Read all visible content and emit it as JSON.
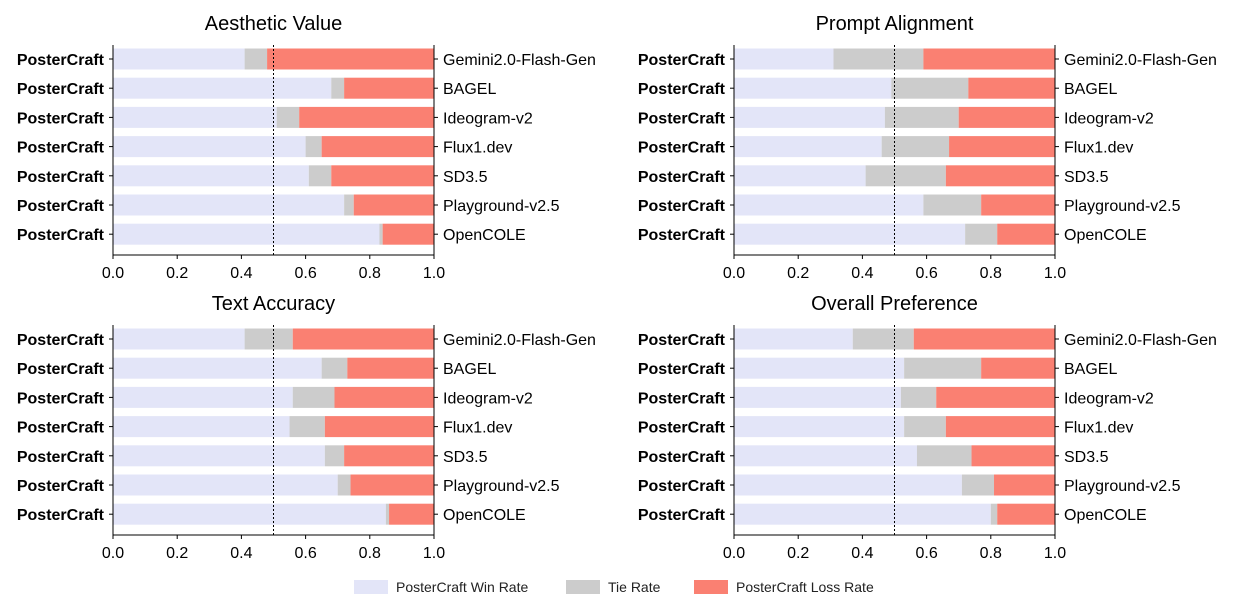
{
  "chart_data": {
    "type": "bar",
    "orientation": "horizontal-stacked",
    "legend": {
      "placement": "bottom-center",
      "entries": [
        {
          "name": "PosterCraft Win Rate",
          "color": "#e3e5f8"
        },
        {
          "name": "Tie Rate",
          "color": "#cccccc"
        },
        {
          "name": "PosterCraft Loss Rate",
          "color": "#fa8072"
        }
      ]
    },
    "left_label": "PosterCraft",
    "categories": [
      "Gemini2.0-Flash-Gen",
      "BAGEL",
      "Ideogram-v2",
      "Flux1.dev",
      "SD3.5",
      "Playground-v2.5",
      "OpenCOLE"
    ],
    "xlim": [
      0,
      1
    ],
    "xticks": [
      "0.0",
      "0.2",
      "0.4",
      "0.6",
      "0.8",
      "1.0"
    ],
    "reference_line": 0.5,
    "panels": [
      {
        "title": "Aesthetic Value",
        "win": [
          0.41,
          0.68,
          0.51,
          0.6,
          0.61,
          0.72,
          0.83
        ],
        "tie": [
          0.07,
          0.04,
          0.07,
          0.05,
          0.07,
          0.03,
          0.01
        ],
        "loss": [
          0.52,
          0.28,
          0.42,
          0.35,
          0.32,
          0.25,
          0.16
        ]
      },
      {
        "title": "Prompt Alignment",
        "win": [
          0.31,
          0.49,
          0.47,
          0.46,
          0.41,
          0.59,
          0.72
        ],
        "tie": [
          0.28,
          0.24,
          0.23,
          0.21,
          0.25,
          0.18,
          0.1
        ],
        "loss": [
          0.41,
          0.27,
          0.3,
          0.33,
          0.34,
          0.23,
          0.18
        ]
      },
      {
        "title": "Text Accuracy",
        "win": [
          0.41,
          0.65,
          0.56,
          0.55,
          0.66,
          0.7,
          0.85
        ],
        "tie": [
          0.15,
          0.08,
          0.13,
          0.11,
          0.06,
          0.04,
          0.01
        ],
        "loss": [
          0.44,
          0.27,
          0.31,
          0.34,
          0.28,
          0.26,
          0.14
        ]
      },
      {
        "title": "Overall Preference",
        "win": [
          0.37,
          0.53,
          0.52,
          0.53,
          0.57,
          0.71,
          0.8
        ],
        "tie": [
          0.19,
          0.24,
          0.11,
          0.13,
          0.17,
          0.1,
          0.02
        ],
        "loss": [
          0.44,
          0.23,
          0.37,
          0.34,
          0.26,
          0.19,
          0.18
        ]
      }
    ]
  }
}
